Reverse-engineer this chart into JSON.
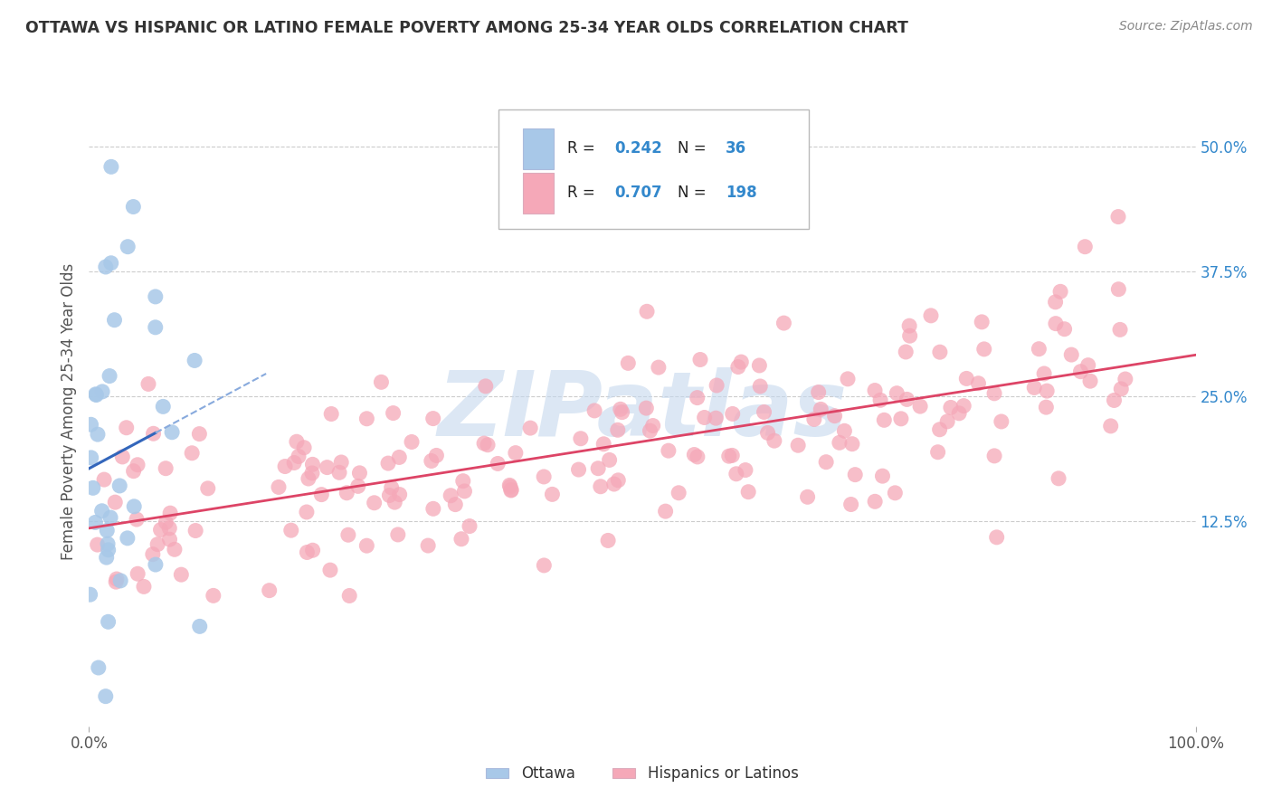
{
  "title": "OTTAWA VS HISPANIC OR LATINO FEMALE POVERTY AMONG 25-34 YEAR OLDS CORRELATION CHART",
  "source": "Source: ZipAtlas.com",
  "ylabel": "Female Poverty Among 25-34 Year Olds",
  "xlim": [
    0,
    100
  ],
  "ylim": [
    -8,
    55
  ],
  "yticks": [
    12.5,
    25.0,
    37.5,
    50.0
  ],
  "ytick_labels": [
    "12.5%",
    "25.0%",
    "37.5%",
    "50.0%"
  ],
  "xtick_labels": [
    "0.0%",
    "100.0%"
  ],
  "watermark": "ZIPatlas",
  "legend_R1": "0.242",
  "legend_N1": "36",
  "legend_R2": "0.707",
  "legend_N2": "198",
  "ottawa_color": "#a8c8e8",
  "hispanic_color": "#f5a8b8",
  "ottawa_line_color": "#3366bb",
  "ottawa_line_dash_color": "#88aadd",
  "hispanic_line_color": "#dd4466",
  "blue_text_color": "#3388cc",
  "black_text_color": "#222222",
  "title_color": "#333333",
  "background_color": "#ffffff",
  "grid_color": "#cccccc",
  "legend_label1": "Ottawa",
  "legend_label2": "Hispanics or Latinos",
  "watermark_color": "#c5d8ee",
  "n_ottawa": 36,
  "n_hispanic": 198
}
